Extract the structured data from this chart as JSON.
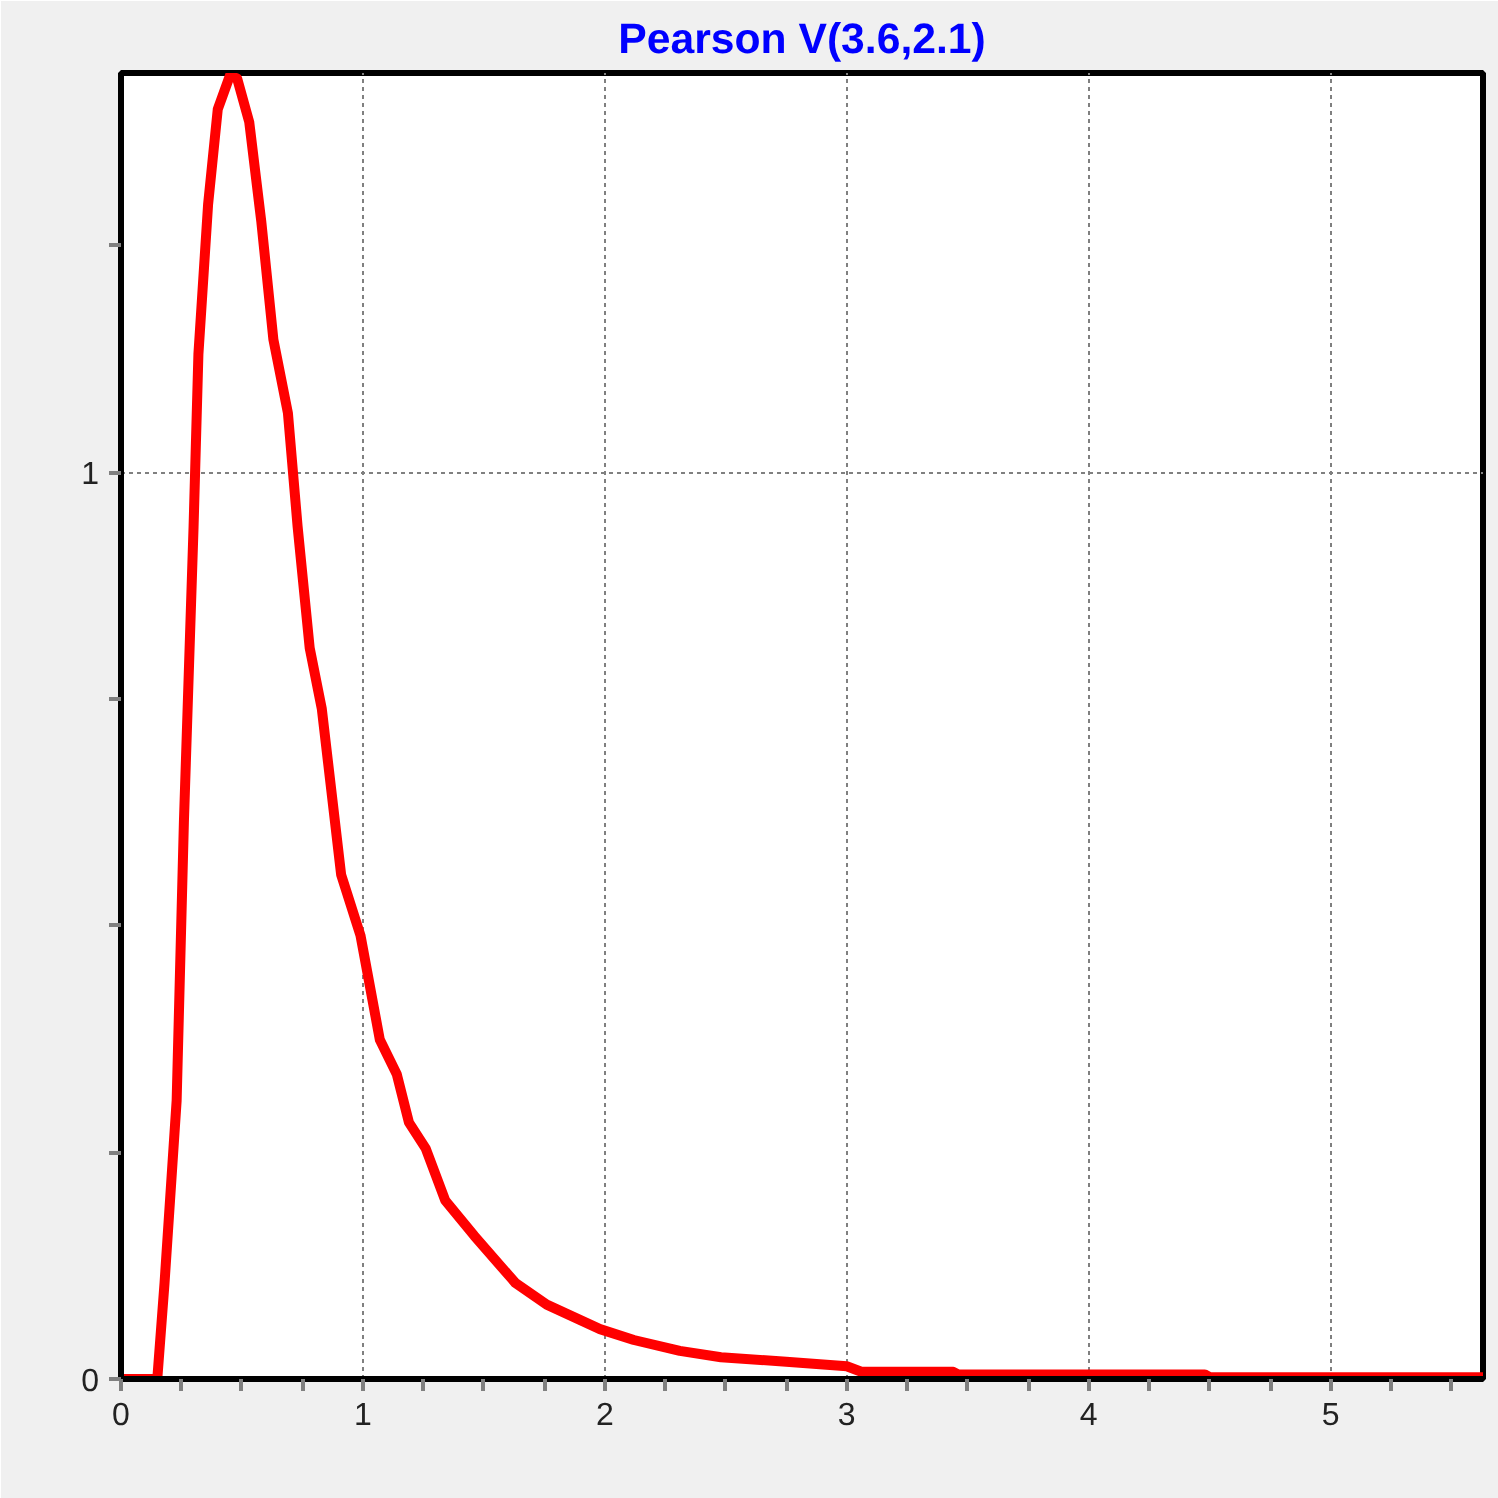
{
  "chart_data": {
    "type": "line",
    "title": "Pearson V(3.6,2.1)",
    "x": [
      0,
      0.12,
      0.15,
      0.18,
      0.23,
      0.26,
      0.3,
      0.32,
      0.36,
      0.4,
      0.45,
      0.48,
      0.53,
      0.58,
      0.63,
      0.69,
      0.73,
      0.78,
      0.83,
      0.91,
      0.99,
      1.07,
      1.14,
      1.19,
      1.26,
      1.34,
      1.46,
      1.63,
      1.76,
      1.98,
      2.12,
      2.31,
      2.48,
      2.75,
      3.0,
      3.06,
      3.44,
      3.46,
      4.48,
      4.5,
      5.63
    ],
    "series": [
      {
        "color": "#ff0000",
        "values": [
          0,
          0,
          0,
          0.106,
          0.307,
          0.614,
          0.94,
          1.13,
          1.295,
          1.4,
          1.437,
          1.434,
          1.386,
          1.276,
          1.146,
          1.065,
          0.94,
          0.806,
          0.739,
          0.556,
          0.489,
          0.374,
          0.336,
          0.283,
          0.254,
          0.197,
          0.158,
          0.106,
          0.082,
          0.055,
          0.043,
          0.031,
          0.024,
          0.019,
          0.014,
          0.008,
          0.008,
          0.005,
          0.005,
          0.002,
          0.002
        ]
      }
    ],
    "xlim": [
      0,
      5.63
    ],
    "ylim": [
      0,
      1.44
    ],
    "xticks": [
      0,
      {
        "value": 0.25,
        "label": null
      },
      {
        "value": 0.5,
        "label": null
      },
      {
        "value": 0.75,
        "label": null
      },
      1,
      {
        "value": 1.25,
        "label": null
      },
      {
        "value": 1.5,
        "label": null
      },
      {
        "value": 1.75,
        "label": null
      },
      2,
      {
        "value": 2.25,
        "label": null
      },
      {
        "value": 2.5,
        "label": null
      },
      {
        "value": 2.75,
        "label": null
      },
      3,
      {
        "value": 3.25,
        "label": null
      },
      {
        "value": 3.5,
        "label": null
      },
      {
        "value": 3.75,
        "label": null
      },
      4,
      {
        "value": 4.25,
        "label": null
      },
      {
        "value": 4.5,
        "label": null
      },
      {
        "value": 4.75,
        "label": null
      },
      5,
      {
        "value": 5.25,
        "label": null
      },
      {
        "value": 5.5,
        "label": null
      }
    ],
    "yticks": [
      0,
      {
        "value": 0.25,
        "label": null
      },
      {
        "value": 0.5,
        "label": null
      },
      {
        "value": 0.75,
        "label": null
      },
      1,
      {
        "value": 1.25,
        "label": null
      }
    ],
    "grid": true,
    "line_style": "solid"
  }
}
